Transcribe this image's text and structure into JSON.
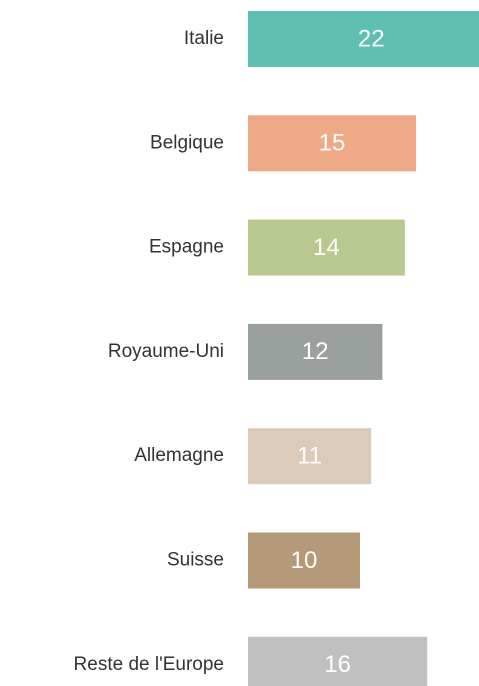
{
  "chart_data": {
    "type": "bar",
    "orientation": "horizontal",
    "categories": [
      "Italie",
      "Belgique",
      "Espagne",
      "Royaume-Uni",
      "Allemagne",
      "Suisse",
      "Reste de l'Europe"
    ],
    "values": [
      22,
      15,
      14,
      12,
      11,
      10,
      16
    ],
    "colors": [
      "#5fbfb3",
      "#f0a987",
      "#b8c88e",
      "#9aa09e",
      "#dccbb8",
      "#b59a79",
      "#c0c0c0"
    ]
  }
}
